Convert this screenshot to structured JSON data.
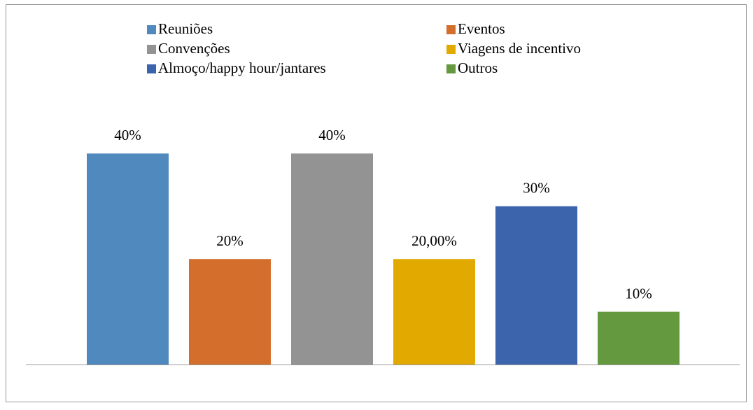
{
  "chart_data": {
    "type": "bar",
    "series": [
      {
        "name": "Reuniões",
        "color": "#4f89bd",
        "values": [
          40
        ],
        "value_labels": [
          "40%"
        ]
      },
      {
        "name": "Eventos",
        "color": "#d36e2c",
        "values": [
          20
        ],
        "value_labels": [
          "20%"
        ]
      },
      {
        "name": "Convenções",
        "color": "#939393",
        "values": [
          40
        ],
        "value_labels": [
          "40%"
        ]
      },
      {
        "name": "Viagens de incentivo",
        "color": "#e2aa00",
        "values": [
          20
        ],
        "value_labels": [
          "20,00%"
        ]
      },
      {
        "name": "Almoço/happy hour/jantares",
        "color": "#3c64ad",
        "values": [
          30
        ],
        "value_labels": [
          "30%"
        ]
      },
      {
        "name": "Outros",
        "color": "#64993f",
        "values": [
          10
        ],
        "value_labels": [
          "10%"
        ]
      }
    ],
    "ylim": [
      0,
      50
    ]
  }
}
